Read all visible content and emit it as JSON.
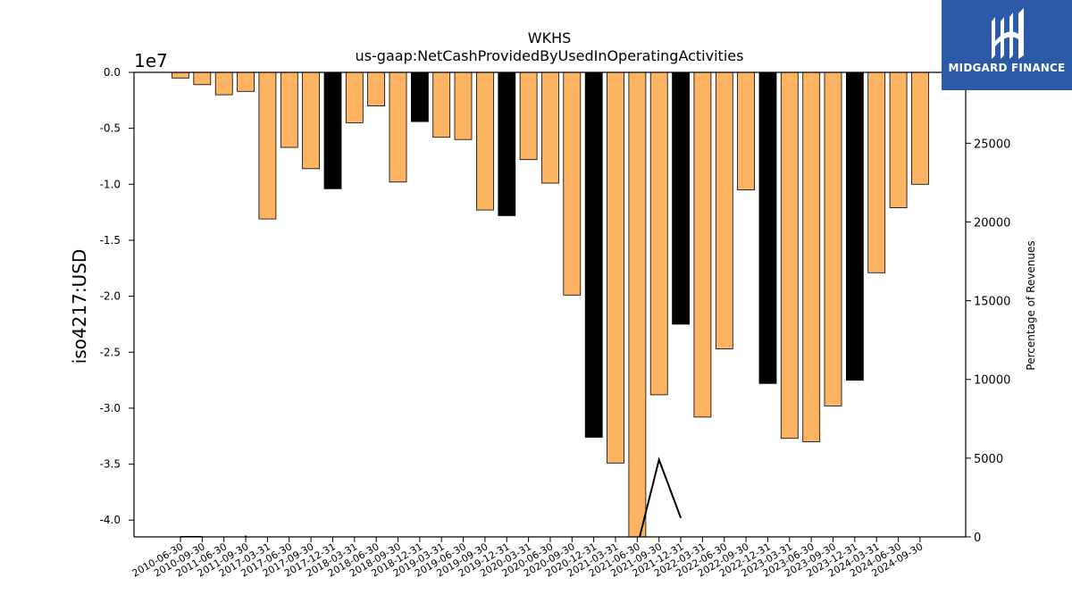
{
  "chart_data": {
    "type": "bar",
    "title": "WKHS",
    "subtitle": "us-gaap:NetCashProvidedByUsedInOperatingActivities",
    "ylabel": "iso4217:USD",
    "y_offset_label": "1e7",
    "y2label": "Percentage of Revenues",
    "ylim": [
      -41500000,
      0
    ],
    "y2lim": [
      0,
      29500
    ],
    "y_ticks": [
      "0.0",
      "-0.5",
      "-1.0",
      "-1.5",
      "-2.0",
      "-2.5",
      "-3.0",
      "-3.5",
      "-4.0"
    ],
    "y2_ticks": [
      "0",
      "5000",
      "10000",
      "15000",
      "20000",
      "25000"
    ],
    "categories": [
      "2010-06-30",
      "2010-09-30",
      "2011-06-30",
      "2011-09-30",
      "2017-03-31",
      "2017-06-30",
      "2017-09-30",
      "2017-12-31",
      "2018-03-31",
      "2018-06-30",
      "2018-09-30",
      "2018-12-31",
      "2019-03-31",
      "2019-06-30",
      "2019-09-30",
      "2019-12-31",
      "2020-03-31",
      "2020-06-30",
      "2020-09-30",
      "2020-12-31",
      "2021-03-31",
      "2021-06-30",
      "2021-09-30",
      "2021-12-31",
      "2022-03-31",
      "2022-06-30",
      "2022-09-30",
      "2022-12-31",
      "2023-03-31",
      "2023-06-30",
      "2023-09-30",
      "2023-12-31",
      "2024-03-31",
      "2024-06-30",
      "2024-09-30"
    ],
    "series": [
      {
        "values": [
          -500000,
          -1100000,
          -2000000,
          -1700000,
          -13100000,
          -6700000,
          -8600000,
          -10400000,
          -4500000,
          -3000000,
          -9800000,
          -4400000,
          -5800000,
          -6000000,
          -12300000,
          -12800000,
          -7800000,
          -9900000,
          -19900000,
          -32600000,
          -34900000,
          -41500000,
          -28800000,
          -22500000,
          -30800000,
          -24700000,
          -10500000,
          -27800000,
          -32700000,
          -33000000,
          -29800000,
          -27500000,
          -17900000,
          -12100000,
          -10000000
        ]
      },
      {
        "type": "line",
        "axis": "right",
        "values": [
          0,
          0,
          null,
          20,
          null,
          null,
          null,
          null,
          null,
          null,
          null,
          null,
          null,
          null,
          null,
          null,
          null,
          null,
          null,
          null,
          null,
          -600,
          4900,
          1200,
          null,
          null,
          null,
          null,
          null,
          null,
          null,
          null,
          null,
          null,
          null
        ]
      }
    ],
    "bar_colors": {
      "default": "#fdb462",
      "highlight": "#000000"
    },
    "highlight_indices": [
      7,
      11,
      15,
      19,
      23,
      27,
      31
    ],
    "grid": false,
    "legend": "none"
  },
  "brand": {
    "name": "MIDGARD FINANCE",
    "background": "#2a5aa8"
  }
}
